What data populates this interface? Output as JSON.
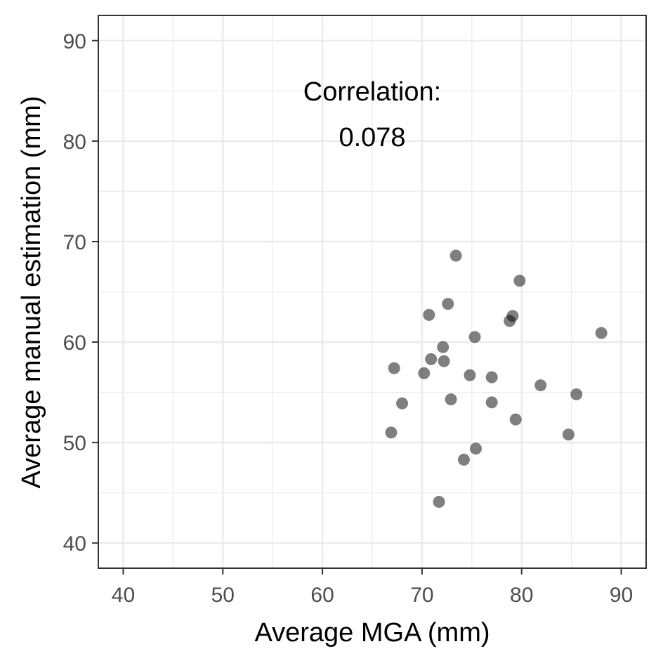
{
  "chart_data": {
    "type": "scatter",
    "xlabel": "Average MGA (mm)",
    "ylabel": "Average manual estimation (mm)",
    "xlim": [
      37.5,
      92.5
    ],
    "ylim": [
      37.5,
      92.5
    ],
    "xticks": [
      40,
      50,
      60,
      70,
      80,
      90
    ],
    "yticks": [
      40,
      50,
      60,
      70,
      80,
      90
    ],
    "grid": true,
    "annotation": {
      "line1": "Correlation:",
      "line2": "0.078"
    },
    "series": [
      {
        "points": [
          {
            "x": 73.4,
            "y": 68.6
          },
          {
            "x": 79.8,
            "y": 66.1
          },
          {
            "x": 72.6,
            "y": 63.8
          },
          {
            "x": 70.7,
            "y": 62.7
          },
          {
            "x": 79.1,
            "y": 62.6
          },
          {
            "x": 78.8,
            "y": 62.1
          },
          {
            "x": 88.0,
            "y": 60.9
          },
          {
            "x": 75.3,
            "y": 60.5
          },
          {
            "x": 72.1,
            "y": 59.5
          },
          {
            "x": 70.9,
            "y": 58.3
          },
          {
            "x": 72.2,
            "y": 58.1
          },
          {
            "x": 67.2,
            "y": 57.4
          },
          {
            "x": 70.2,
            "y": 56.9
          },
          {
            "x": 74.8,
            "y": 56.7
          },
          {
            "x": 77.0,
            "y": 56.5
          },
          {
            "x": 81.9,
            "y": 55.7
          },
          {
            "x": 85.5,
            "y": 54.8
          },
          {
            "x": 72.9,
            "y": 54.3
          },
          {
            "x": 77.0,
            "y": 54.0
          },
          {
            "x": 68.0,
            "y": 53.9
          },
          {
            "x": 79.4,
            "y": 52.3
          },
          {
            "x": 66.9,
            "y": 51.0
          },
          {
            "x": 84.7,
            "y": 50.8
          },
          {
            "x": 75.4,
            "y": 49.4
          },
          {
            "x": 74.2,
            "y": 48.3
          },
          {
            "x": 71.7,
            "y": 44.1
          }
        ]
      }
    ]
  }
}
